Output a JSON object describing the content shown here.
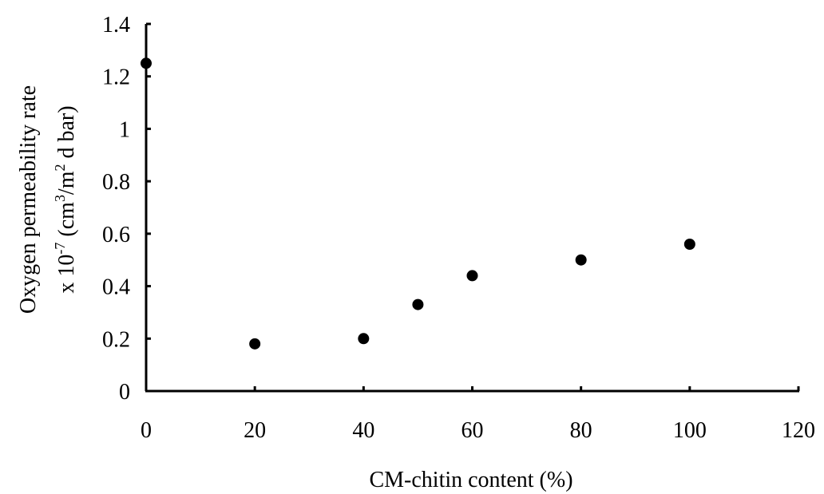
{
  "chart_data": {
    "type": "scatter",
    "xlabel": "CM-chitin content (%)",
    "ylabel_line1": "Oxygen permeability rate",
    "ylabel_line2": {
      "prefix": "x 10",
      "exp": "-7",
      "mid1": " (cm",
      "sup1": "3",
      "mid2": "/m",
      "sup2": "2",
      "suffix": " d bar)"
    },
    "xlim": [
      0,
      120
    ],
    "ylim": [
      0,
      1.4
    ],
    "x_ticks": [
      0,
      20,
      40,
      60,
      80,
      100,
      120
    ],
    "x_tick_labels": [
      "0",
      "20",
      "40",
      "60",
      "80",
      "100",
      "120"
    ],
    "y_ticks": [
      0,
      0.2,
      0.4,
      0.6,
      0.8,
      1.0,
      1.2,
      1.4
    ],
    "y_tick_labels": [
      "0",
      "0.2",
      "0.4",
      "0.6",
      "0.8",
      "1",
      "1.2",
      "1.4"
    ],
    "grid": false,
    "marker_color": "#000000",
    "points": [
      {
        "x": 0,
        "y": 1.25
      },
      {
        "x": 20,
        "y": 0.18
      },
      {
        "x": 40,
        "y": 0.2
      },
      {
        "x": 50,
        "y": 0.33
      },
      {
        "x": 60,
        "y": 0.44
      },
      {
        "x": 80,
        "y": 0.5
      },
      {
        "x": 100,
        "y": 0.56
      }
    ]
  }
}
